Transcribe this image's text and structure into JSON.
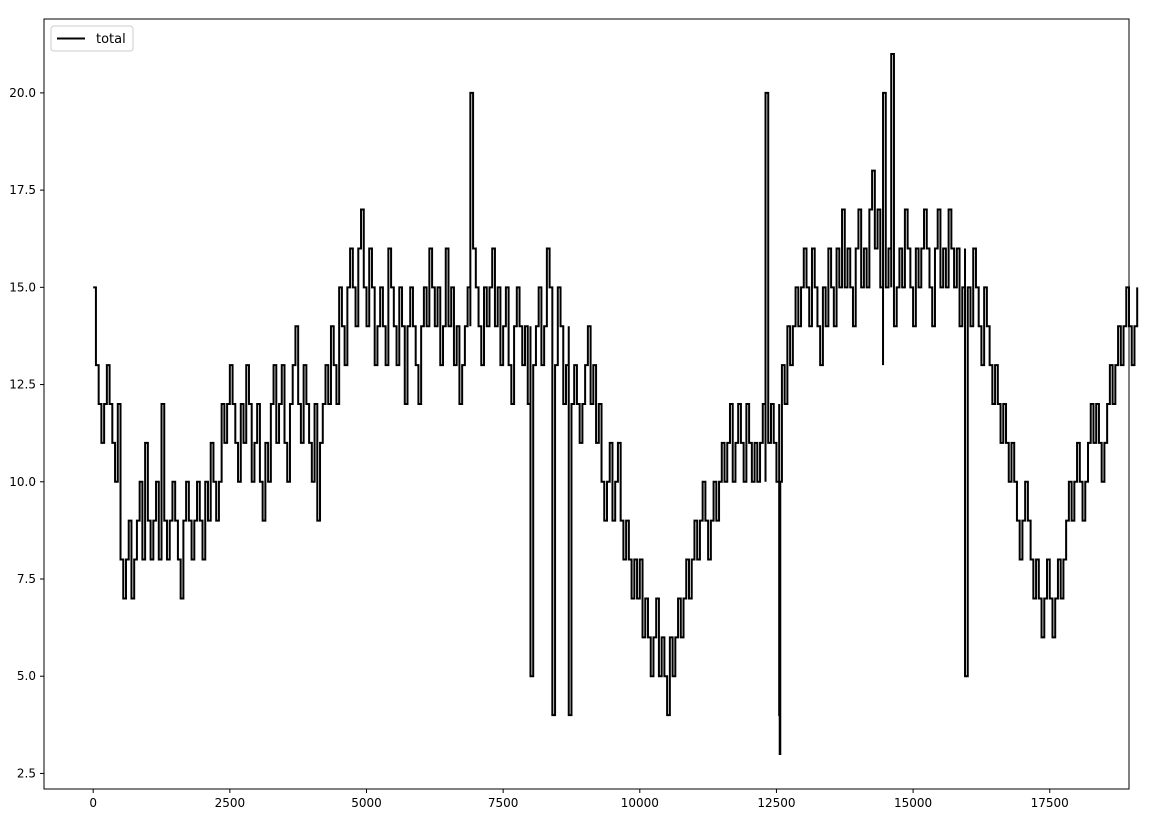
{
  "chart_data": {
    "type": "line",
    "title": "",
    "xlabel": "",
    "ylabel": "",
    "xlim": [
      -900,
      18950
    ],
    "ylim": [
      2.1,
      21.9
    ],
    "x_ticks": [
      0,
      2500,
      5000,
      7500,
      10000,
      12500,
      15000,
      17500
    ],
    "x_tick_labels": [
      "0",
      "2500",
      "5000",
      "7500",
      "10000",
      "12500",
      "15000",
      "17500"
    ],
    "y_ticks": [
      2.5,
      5.0,
      7.5,
      10.0,
      12.5,
      15.0,
      17.5,
      20.0
    ],
    "y_tick_labels": [
      "2.5",
      "5.0",
      "7.5",
      "10.0",
      "12.5",
      "15.0",
      "17.5",
      "20.0"
    ],
    "legend": {
      "position": "top-left",
      "entries": [
        "total"
      ]
    },
    "grid": false,
    "series": [
      {
        "name": "total",
        "color": "#000000",
        "x_start": 0,
        "x_step": 50,
        "values": [
          15,
          13,
          12,
          11,
          12,
          13,
          12,
          11,
          10,
          12,
          8,
          7,
          8,
          9,
          7,
          8,
          9,
          10,
          8,
          11,
          9,
          8,
          9,
          10,
          8,
          12,
          9,
          8,
          9,
          10,
          9,
          8,
          7,
          9,
          10,
          9,
          8,
          9,
          10,
          9,
          8,
          10,
          9,
          11,
          10,
          9,
          10,
          12,
          11,
          12,
          13,
          12,
          11,
          10,
          12,
          11,
          13,
          12,
          10,
          11,
          12,
          10,
          9,
          11,
          10,
          12,
          13,
          11,
          12,
          13,
          11,
          10,
          12,
          13,
          14,
          12,
          11,
          13,
          12,
          11,
          10,
          12,
          9,
          11,
          12,
          13,
          12,
          14,
          13,
          12,
          15,
          14,
          13,
          15,
          16,
          15,
          14,
          16,
          17,
          15,
          14,
          16,
          15,
          13,
          14,
          15,
          14,
          13,
          16,
          15,
          14,
          13,
          15,
          14,
          12,
          14,
          15,
          14,
          13,
          12,
          14,
          15,
          14,
          16,
          15,
          14,
          15,
          13,
          14,
          16,
          14,
          15,
          13,
          14,
          12,
          13,
          14,
          15,
          14,
          16,
          15,
          14,
          13,
          15,
          14,
          15,
          16,
          14,
          15,
          13,
          14,
          15,
          13,
          12,
          14,
          15,
          14,
          13,
          14,
          12,
          14,
          13,
          14,
          15,
          13,
          14,
          16,
          15,
          14,
          13,
          15,
          14,
          12,
          13,
          14,
          12,
          13,
          12,
          11,
          12,
          13,
          14,
          12,
          13,
          11,
          12,
          10,
          9,
          10,
          11,
          9,
          10,
          11,
          9,
          8,
          9,
          8,
          7,
          8,
          7,
          8,
          6,
          7,
          6,
          5,
          6,
          7,
          5,
          6,
          5,
          4,
          6,
          5,
          6,
          7,
          6,
          7,
          8,
          7,
          8,
          9,
          8,
          9,
          10,
          9,
          8,
          9,
          10,
          9,
          10,
          11,
          10,
          11,
          12,
          10,
          11,
          12,
          11,
          10,
          12,
          11,
          10,
          11,
          10,
          11,
          12,
          10,
          11,
          12,
          11,
          10,
          12,
          13,
          12,
          14,
          13,
          14,
          15,
          14,
          15,
          16,
          15,
          14,
          16,
          15,
          14,
          13,
          15,
          14,
          16,
          15,
          14,
          16,
          15,
          17,
          15,
          16,
          15,
          14,
          16,
          17,
          15,
          16,
          15,
          17,
          18,
          16,
          17,
          15,
          13,
          15,
          16,
          15,
          14,
          15,
          16,
          15,
          17,
          16,
          15,
          14,
          16,
          15,
          16,
          17,
          16,
          15,
          14,
          16,
          17,
          15,
          16,
          15,
          17,
          16,
          15,
          16,
          14,
          15,
          16,
          15,
          14,
          16,
          15,
          14,
          13,
          15,
          14,
          13,
          12,
          13,
          12,
          11,
          12,
          11,
          10,
          11,
          10,
          9,
          8,
          9,
          10,
          9,
          8,
          7,
          8,
          7,
          6,
          7,
          8,
          7,
          6,
          7,
          8,
          7,
          8,
          9,
          10,
          9,
          10,
          11,
          10,
          9,
          10,
          11,
          12,
          11,
          12,
          11,
          10,
          11,
          12,
          13,
          12,
          13,
          14,
          13,
          14,
          15,
          14,
          13,
          14,
          15
        ],
        "extreme_points": [
          {
            "x": 6900,
            "y": 20
          },
          {
            "x": 12300,
            "y": 20
          },
          {
            "x": 12200,
            "y": 11
          },
          {
            "x": 12550,
            "y": 4
          },
          {
            "x": 12560,
            "y": 3
          },
          {
            "x": 12570,
            "y": 10
          },
          {
            "x": 14600,
            "y": 21
          },
          {
            "x": 14450,
            "y": 20
          },
          {
            "x": 8400,
            "y": 4
          },
          {
            "x": 8700,
            "y": 4
          },
          {
            "x": 15950,
            "y": 5
          },
          {
            "x": 8000,
            "y": 5
          }
        ]
      }
    ]
  }
}
